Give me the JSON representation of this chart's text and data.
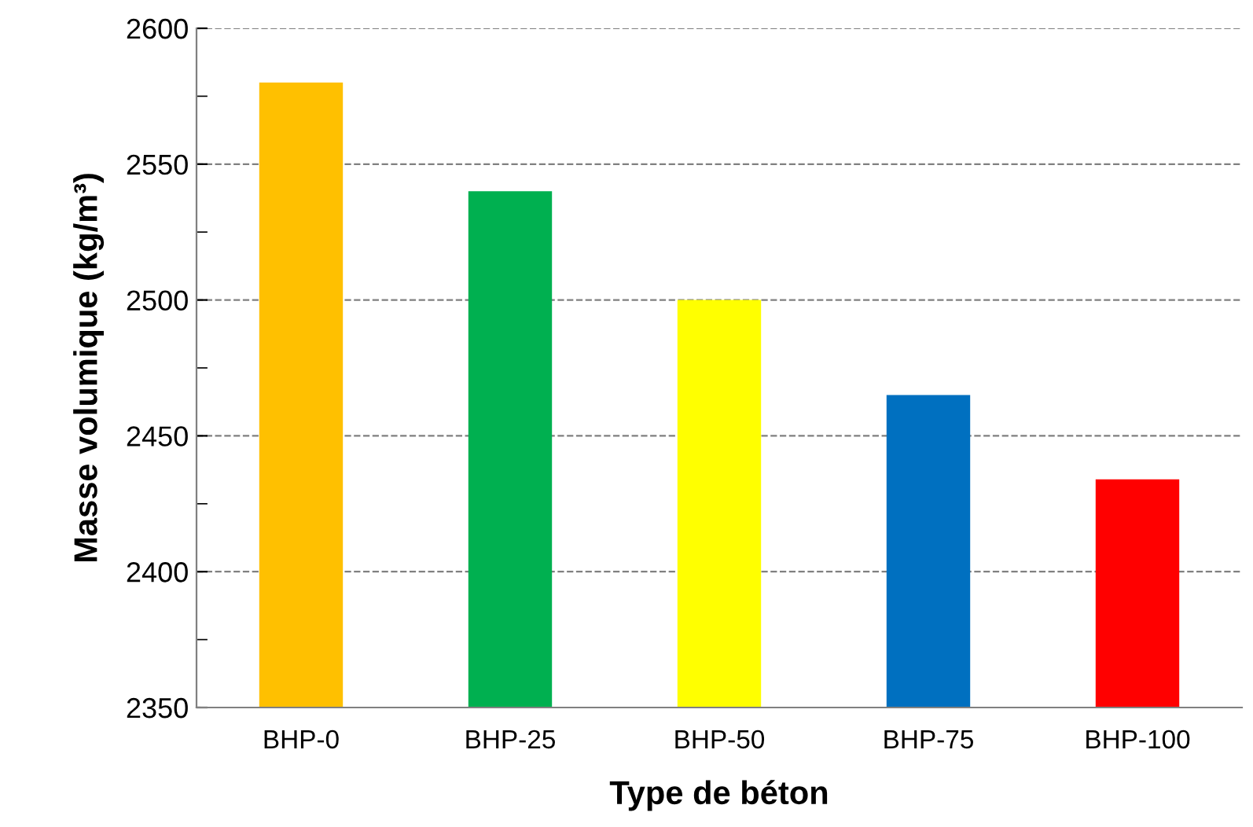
{
  "chart_data": {
    "type": "bar",
    "xlabel": "Type de béton",
    "ylabel": "Masse volumique (kg/m³)",
    "categories": [
      "BHP-0",
      "BHP-25",
      "BHP-50",
      "BHP-75",
      "BHP-100"
    ],
    "values": [
      2580,
      2540,
      2500,
      2465,
      2434
    ],
    "colors": [
      "#ffc000",
      "#00b050",
      "#ffff00",
      "#0070c0",
      "#ff0000"
    ],
    "ylim": [
      2350,
      2600
    ],
    "yticks": [
      2350,
      {
        "value": 2375,
        "label": null
      },
      2400,
      {
        "value": 2425,
        "label": null
      },
      2450,
      {
        "value": 2475,
        "label": null
      },
      2500,
      {
        "value": 2525,
        "label": null
      },
      2550,
      {
        "value": 2575,
        "label": null
      },
      2600
    ],
    "grid": "y"
  }
}
